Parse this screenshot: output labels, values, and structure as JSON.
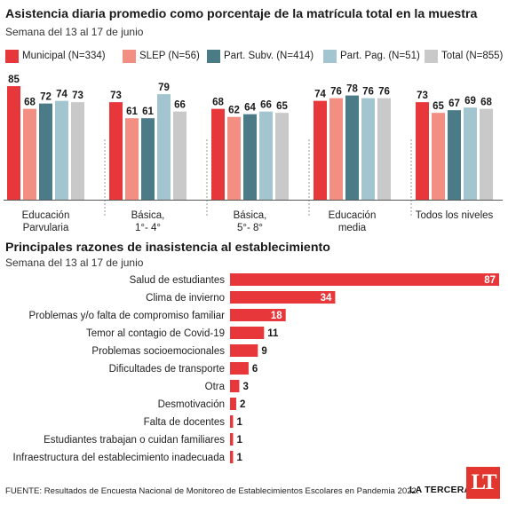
{
  "chart_data": [
    {
      "type": "bar",
      "title": "Asistencia diaria promedio como porcentaje de la matrícula total en la muestra",
      "subtitle": "Semana del 13 al 17 de junio",
      "categories": [
        [
          "Educación",
          "Parvularia"
        ],
        [
          "Básica,",
          "1°- 4°"
        ],
        [
          "Básica,",
          "5°- 8°"
        ],
        [
          "Educación",
          "media"
        ],
        [
          "Todos los niveles"
        ]
      ],
      "series": [
        {
          "name": "Municipal (N=334)",
          "color": "#e8373a",
          "values": [
            85,
            73,
            68,
            74,
            73
          ]
        },
        {
          "name": "SLEP (N=56)",
          "color": "#f28e82",
          "values": [
            68,
            61,
            62,
            76,
            65
          ]
        },
        {
          "name": "Part. Subv. (N=414)",
          "color": "#4b7b87",
          "values": [
            72,
            61,
            64,
            78,
            67
          ]
        },
        {
          "name": "Part. Pag. (N=51)",
          "color": "#a3c5d0",
          "values": [
            74,
            79,
            66,
            76,
            69
          ]
        },
        {
          "name": "Total (N=855)",
          "color": "#c9c9c9",
          "values": [
            73,
            66,
            65,
            76,
            68
          ]
        }
      ],
      "ylim": [
        0,
        100
      ]
    },
    {
      "type": "bar",
      "orientation": "horizontal",
      "title": "Principales razones de inasistencia al establecimiento",
      "subtitle": "Semana del 13 al 17 de junio",
      "color": "#e8373a",
      "categories": [
        "Salud de estudiantes",
        "Clima de invierno",
        "Problemas y/o falta de compromiso familiar",
        "Temor al contagio de Covid-19",
        "Problemas socioemocionales",
        "Dificultades de transporte",
        "Otra",
        "Desmotivación",
        "Falta de docentes",
        "Estudiantes trabajan o cuidan familiares",
        "Infraestructura del establecimiento inadecuada"
      ],
      "values": [
        87,
        34,
        18,
        11,
        9,
        6,
        3,
        2,
        1,
        1,
        1
      ],
      "xlim": [
        0,
        87
      ]
    }
  ],
  "footer": {
    "source": "FUENTE: Resultados de Encuesta Nacional de Monitoreo de Establecimientos Escolares en Pandemia 2022.",
    "brand": "LA TERCERA",
    "logo": "LT"
  }
}
